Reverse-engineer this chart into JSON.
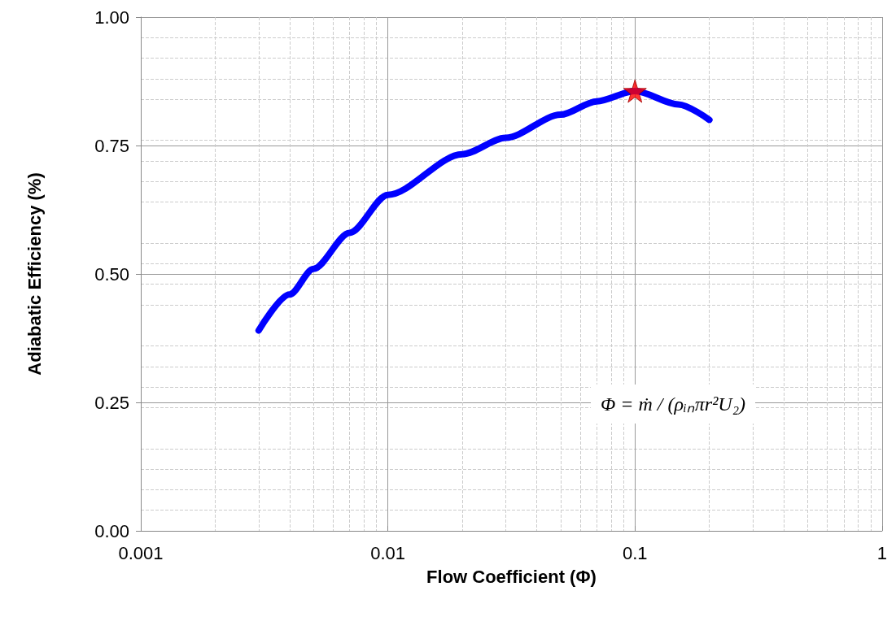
{
  "chart_data": {
    "type": "line",
    "xlabel": "Flow Coefficient (Φ)",
    "ylabel": "Adiabatic Efficiency (%)",
    "log": "x",
    "xlim": [
      0.001,
      1
    ],
    "xticks": [
      0.001,
      0.01,
      0.1,
      1
    ],
    "ylim": [
      0,
      1
    ],
    "yticks": [
      {
        "value": 0,
        "label": "0.00"
      },
      {
        "value": 0.25,
        "label": "0.25"
      },
      {
        "value": 0.5,
        "label": "0.50"
      },
      {
        "value": 0.75,
        "label": "0.75"
      },
      {
        "value": 1,
        "label": "1.00"
      }
    ],
    "grid": true,
    "line_style": "solid",
    "series": [
      {
        "color": "#0000ff",
        "x": [
          0.003,
          0.004,
          0.005,
          0.007,
          0.01,
          0.02,
          0.03,
          0.05,
          0.07,
          0.1,
          0.15,
          0.2
        ],
        "values": [
          0.39,
          0.46,
          0.51,
          0.58,
          0.654,
          0.733,
          0.765,
          0.81,
          0.836,
          0.856,
          0.83,
          0.8
        ]
      },
      {
        "type": "scatter",
        "marker": "star",
        "color": "#ff0000",
        "x": [
          0.1
        ],
        "values": [
          0.856
        ]
      }
    ],
    "annotations": [
      "Φ = ṁ / (ρᵢₙπr²U₂)"
    ]
  }
}
